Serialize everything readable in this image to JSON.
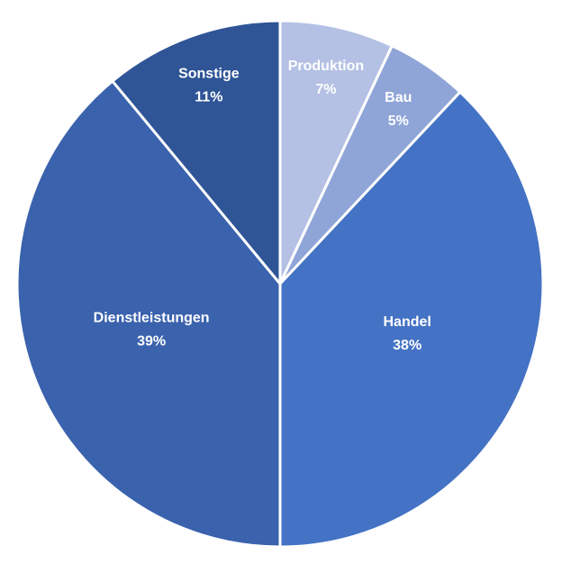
{
  "chart_data": {
    "type": "pie",
    "categories": [
      "Produktion",
      "Bau",
      "Handel",
      "Dienstleistungen",
      "Sonstige"
    ],
    "values": [
      7,
      5,
      38,
      39,
      11
    ],
    "value_labels": [
      "7%",
      "5%",
      "38%",
      "39%",
      "11%"
    ],
    "colors": [
      "#b4c0e4",
      "#8fa5d8",
      "#4472c4",
      "#3a62ad",
      "#2f5597"
    ]
  }
}
